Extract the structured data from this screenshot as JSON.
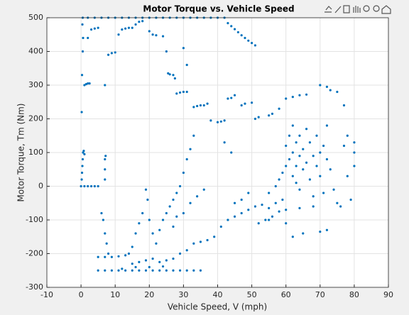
{
  "chart_data": {
    "type": "scatter",
    "title": "Motor Torque vs. Vehicle Speed",
    "x_label": "Vehicle Speed, V (mph)",
    "y_label": "Motor Torque, Tm (Nm)",
    "color": "#0072bd",
    "grid": true,
    "xlim": [
      -10,
      90
    ],
    "xticks": [
      -10,
      0,
      10,
      20,
      30,
      40,
      50,
      60,
      70,
      80,
      90
    ],
    "ylim": [
      -300,
      500
    ],
    "yticks": [
      -300,
      -200,
      -100,
      0,
      100,
      200,
      300,
      400,
      500
    ],
    "x": [
      0.5,
      2,
      4,
      6,
      8,
      10,
      12,
      14,
      16,
      18,
      20,
      22,
      24,
      26,
      28,
      30,
      32,
      34,
      36,
      38,
      40,
      42,
      43,
      44,
      45,
      46,
      47,
      48,
      49,
      50,
      51,
      0,
      1,
      2,
      3,
      4,
      5,
      0.2,
      0.3,
      0.4,
      0.5,
      0.6,
      0.8,
      1,
      0.2,
      0.3,
      0.5,
      0.6,
      0.4,
      1,
      1.5,
      2,
      2.5,
      2,
      3,
      4,
      5,
      7,
      7,
      7.2,
      7,
      7,
      8,
      9,
      10,
      11,
      12,
      13,
      14,
      15,
      16,
      17,
      18,
      20,
      21,
      22,
      24,
      25,
      25.5,
      26,
      27,
      27.5,
      28,
      29,
      30,
      31,
      30,
      31,
      33,
      34,
      35,
      36,
      37,
      38,
      40,
      41,
      42,
      43,
      44,
      45,
      47,
      48,
      50,
      51,
      52,
      55,
      56,
      58,
      60,
      62,
      64,
      66,
      70,
      72,
      73,
      75,
      77,
      19,
      19.5,
      20,
      21,
      22,
      23,
      24,
      25,
      26,
      27,
      28,
      29,
      30,
      31,
      32,
      33,
      27,
      28,
      30,
      32,
      34,
      36,
      6,
      6.5,
      7,
      7.5,
      8,
      5,
      7,
      9,
      11,
      13,
      14,
      15,
      16,
      17,
      18,
      15,
      17,
      19,
      21,
      23,
      25,
      27,
      29,
      31,
      33,
      35,
      37,
      39,
      41,
      43,
      45,
      47,
      49,
      51,
      53,
      55,
      57,
      59,
      5,
      7,
      9,
      11,
      13,
      15,
      17,
      19,
      21,
      23,
      25,
      27,
      29,
      31,
      33,
      35,
      12,
      16,
      20,
      24,
      55,
      57,
      58,
      59,
      60,
      60,
      61,
      61,
      62,
      62,
      62,
      63,
      63,
      63,
      64,
      64,
      64,
      65,
      65,
      66,
      66,
      67,
      67,
      68,
      68,
      69,
      69,
      70,
      70,
      71,
      71,
      72,
      72,
      73,
      74,
      75,
      76,
      77,
      78,
      78,
      79,
      80,
      80,
      80,
      62,
      65,
      70,
      72,
      60,
      55,
      42,
      44,
      45,
      47,
      49,
      52,
      54,
      56,
      58,
      60,
      64,
      68
    ],
    "values": [
      500,
      500,
      500,
      500,
      500,
      500,
      500,
      500,
      500,
      500,
      500,
      500,
      500,
      500,
      500,
      500,
      500,
      500,
      500,
      500,
      500,
      500,
      484,
      475,
      466,
      457,
      448,
      440,
      432,
      425,
      418,
      0,
      0,
      0,
      0,
      0,
      0,
      20,
      40,
      60,
      80,
      100,
      105,
      95,
      220,
      330,
      400,
      440,
      480,
      300,
      303,
      305,
      305,
      440,
      465,
      468,
      470,
      300,
      80,
      90,
      50,
      20,
      390,
      395,
      397,
      450,
      465,
      468,
      470,
      470,
      480,
      488,
      490,
      460,
      450,
      448,
      445,
      400,
      335,
      332,
      330,
      320,
      275,
      278,
      280,
      280,
      410,
      360,
      235,
      238,
      240,
      240,
      245,
      195,
      190,
      192,
      195,
      260,
      262,
      270,
      240,
      245,
      248,
      200,
      205,
      210,
      215,
      230,
      260,
      265,
      270,
      272,
      300,
      295,
      285,
      280,
      240,
      -10,
      -40,
      -100,
      -140,
      -170,
      -130,
      -100,
      -80,
      -60,
      -40,
      -20,
      0,
      40,
      80,
      110,
      150,
      -120,
      -90,
      -80,
      -50,
      -30,
      -10,
      -80,
      -100,
      -140,
      -170,
      -200,
      -210,
      -210,
      -210,
      -208,
      -205,
      -200,
      -180,
      -140,
      -110,
      -80,
      -230,
      -225,
      -220,
      -215,
      -225,
      -220,
      -215,
      -200,
      -190,
      -170,
      -165,
      -160,
      -150,
      -120,
      -100,
      -90,
      -80,
      -70,
      -60,
      -55,
      -65,
      -50,
      -40,
      -250,
      -250,
      -250,
      -250,
      -250,
      -250,
      -250,
      -250,
      -250,
      -250,
      -250,
      -250,
      -250,
      -250,
      -250,
      -250,
      -245,
      -240,
      -240,
      -238,
      -20,
      0,
      20,
      40,
      60,
      120,
      150,
      80,
      30,
      100,
      180,
      60,
      130,
      10,
      90,
      150,
      -10,
      50,
      110,
      70,
      170,
      130,
      20,
      90,
      -30,
      60,
      150,
      100,
      30,
      120,
      -20,
      80,
      180,
      50,
      -10,
      -50,
      -60,
      120,
      150,
      30,
      -40,
      100,
      130,
      60,
      -150,
      -140,
      -135,
      -130,
      -110,
      -100,
      130,
      100,
      -50,
      -40,
      -20,
      -110,
      -100,
      -90,
      -75,
      -70,
      -65,
      -60
    ]
  }
}
